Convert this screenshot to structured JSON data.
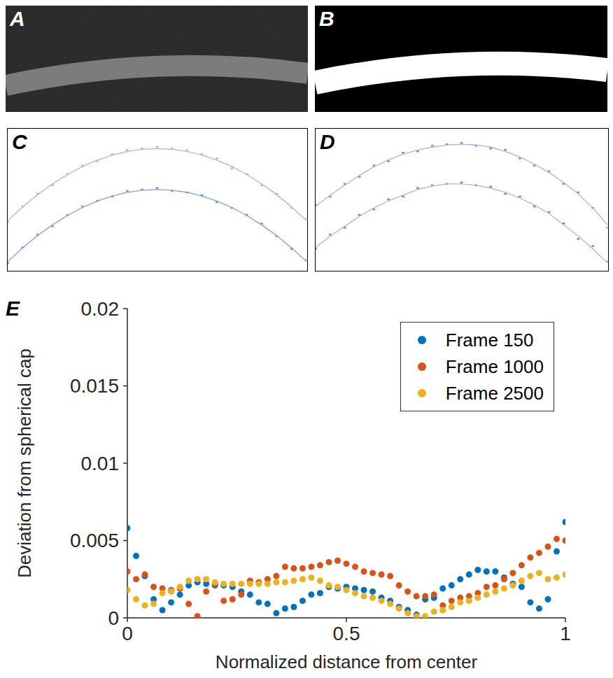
{
  "chart_data": [
    {
      "panel": "A",
      "type": "image"
    },
    {
      "panel": "B",
      "type": "image"
    },
    {
      "panel": "C",
      "type": "scatter",
      "tick_labels": false,
      "xlim": [
        0,
        1
      ],
      "ylim": [
        0,
        1
      ],
      "x": [
        0,
        0.05,
        0.1,
        0.15,
        0.2,
        0.25,
        0.3,
        0.35,
        0.4,
        0.45,
        0.5,
        0.55,
        0.6,
        0.65,
        0.7,
        0.75,
        0.8,
        0.85,
        0.9,
        0.95,
        1
      ],
      "series": [
        {
          "type": "scatter",
          "color": "#f4a86f",
          "values": [
            0.34,
            0.45,
            0.54,
            0.6,
            0.68,
            0.74,
            0.77,
            0.82,
            0.85,
            0.86,
            0.87,
            0.86,
            0.85,
            0.82,
            0.79,
            0.72,
            0.68,
            0.6,
            0.54,
            0.44,
            0.36
          ]
        },
        {
          "type": "line",
          "color": "#c8a9d8",
          "values": [
            0.35,
            0.447,
            0.534,
            0.61,
            0.676,
            0.733,
            0.778,
            0.814,
            0.84,
            0.855,
            0.86,
            0.855,
            0.84,
            0.814,
            0.778,
            0.733,
            0.676,
            0.61,
            0.534,
            0.447,
            0.35
          ]
        },
        {
          "type": "scatter",
          "color": "#6f93d6",
          "values": [
            0.05,
            0.16,
            0.25,
            0.31,
            0.39,
            0.45,
            0.49,
            0.52,
            0.56,
            0.57,
            0.58,
            0.56,
            0.55,
            0.53,
            0.48,
            0.44,
            0.39,
            0.33,
            0.24,
            0.15,
            0.07
          ]
        },
        {
          "type": "line",
          "color": "#7f9fe0",
          "values": [
            0.06,
            0.157,
            0.244,
            0.32,
            0.386,
            0.443,
            0.488,
            0.524,
            0.55,
            0.565,
            0.57,
            0.565,
            0.55,
            0.524,
            0.488,
            0.443,
            0.386,
            0.32,
            0.244,
            0.157,
            0.06
          ]
        }
      ]
    },
    {
      "panel": "D",
      "type": "scatter",
      "tick_labels": false,
      "xlim": [
        0,
        1
      ],
      "ylim": [
        0,
        1
      ],
      "x": [
        0,
        0.05,
        0.1,
        0.15,
        0.2,
        0.25,
        0.3,
        0.35,
        0.4,
        0.45,
        0.5,
        0.55,
        0.6,
        0.65,
        0.7,
        0.75,
        0.8,
        0.85,
        0.9,
        0.95,
        1
      ],
      "series": [
        {
          "type": "scatter",
          "color": "#4c9fc0",
          "values": [
            0.46,
            0.52,
            0.61,
            0.66,
            0.74,
            0.77,
            0.83,
            0.84,
            0.88,
            0.89,
            0.9,
            0.88,
            0.86,
            0.85,
            0.79,
            0.74,
            0.7,
            0.61,
            0.55,
            0.44,
            0.3
          ]
        },
        {
          "type": "line",
          "color": "#a9b4e0",
          "values": [
            0.45,
            0.53,
            0.6,
            0.67,
            0.73,
            0.78,
            0.82,
            0.85,
            0.87,
            0.885,
            0.89,
            0.885,
            0.87,
            0.84,
            0.8,
            0.75,
            0.69,
            0.62,
            0.54,
            0.44,
            0.32
          ]
        },
        {
          "type": "scatter",
          "color": "#e0623e",
          "values": [
            0.15,
            0.25,
            0.3,
            0.39,
            0.43,
            0.5,
            0.52,
            0.58,
            0.6,
            0.61,
            0.62,
            0.6,
            0.59,
            0.54,
            0.52,
            0.45,
            0.41,
            0.33,
            0.22,
            0.17,
            0.06
          ]
        },
        {
          "type": "line",
          "color": "#b9b0d8",
          "values": [
            0.16,
            0.24,
            0.31,
            0.38,
            0.44,
            0.49,
            0.53,
            0.57,
            0.595,
            0.61,
            0.61,
            0.6,
            0.58,
            0.55,
            0.51,
            0.46,
            0.4,
            0.32,
            0.24,
            0.15,
            0.05
          ]
        }
      ]
    },
    {
      "panel": "E",
      "type": "scatter",
      "x_label": "Normalized distance from center",
      "y_label": "Deviation from spherical cap",
      "xlim": [
        0,
        1
      ],
      "ylim": [
        0,
        0.02
      ],
      "xticks": [
        0,
        0.5,
        1
      ],
      "yticks": [
        0,
        0.005,
        0.01,
        0.015,
        0.02
      ],
      "legend": "upper right",
      "x": [
        0,
        0.02,
        0.04,
        0.06,
        0.08,
        0.1,
        0.12,
        0.14,
        0.16,
        0.18,
        0.2,
        0.22,
        0.24,
        0.26,
        0.28,
        0.3,
        0.32,
        0.34,
        0.36,
        0.38,
        0.4,
        0.42,
        0.44,
        0.46,
        0.48,
        0.5,
        0.52,
        0.54,
        0.56,
        0.58,
        0.6,
        0.62,
        0.64,
        0.66,
        0.68,
        0.7,
        0.72,
        0.74,
        0.76,
        0.78,
        0.8,
        0.82,
        0.84,
        0.86,
        0.88,
        0.9,
        0.92,
        0.94,
        0.96,
        0.98,
        1
      ],
      "series": [
        {
          "name": "Frame 150",
          "color": "#0072bd",
          "values": [
            0.0058,
            0.004,
            0.0027,
            0.0012,
            0.0005,
            0.001,
            0.0015,
            0.0021,
            0.0023,
            0.0022,
            0.0021,
            0.0021,
            0.002,
            0.0017,
            0.0015,
            0.001,
            0.0009,
            0.0003,
            0.0006,
            0.0007,
            0.0011,
            0.0015,
            0.0016,
            0.002,
            0.0019,
            0.002,
            0.0019,
            0.0018,
            0.0017,
            0.0013,
            0.0011,
            0.0007,
            0.0005,
            0.0002,
            0.0012,
            0.0013,
            0.0019,
            0.0021,
            0.0025,
            0.0028,
            0.0031,
            0.003,
            0.003,
            0.0026,
            0.0022,
            0.002,
            0.001,
            0.0006,
            0.0012,
            0.0043,
            0.0062
          ]
        },
        {
          "name": "Frame 1000",
          "color": "#d95319",
          "values": [
            0.003,
            0.0025,
            0.0028,
            0.002,
            0.0019,
            0.0018,
            0.0019,
            0.0009,
            0.0001,
            0.0017,
            0.0022,
            0.0011,
            0.0012,
            0.0015,
            0.0024,
            0.0023,
            0.0025,
            0.0027,
            0.0033,
            0.0032,
            0.0032,
            0.0033,
            0.0034,
            0.0036,
            0.0037,
            0.0035,
            0.0033,
            0.003,
            0.0029,
            0.0028,
            0.0027,
            0.0021,
            0.0017,
            0.0014,
            0.0014,
            0.0015,
            0.0008,
            0.0011,
            0.0013,
            0.0014,
            0.0016,
            0.002,
            0.0021,
            0.0025,
            0.0029,
            0.0034,
            0.0039,
            0.0042,
            0.0046,
            0.0051,
            0.005
          ]
        },
        {
          "name": "Frame 2500",
          "color": "#edb120",
          "values": [
            0.0018,
            0.0012,
            0.0008,
            0.0009,
            0.0016,
            0.0017,
            0.002,
            0.0024,
            0.0025,
            0.0025,
            0.0023,
            0.0022,
            0.0022,
            0.0022,
            0.0022,
            0.0022,
            0.0022,
            0.0023,
            0.0023,
            0.0024,
            0.0025,
            0.0026,
            0.0024,
            0.0021,
            0.002,
            0.0018,
            0.0016,
            0.0014,
            0.0013,
            0.0011,
            0.0009,
            0.0006,
            0.0003,
            0.0001,
            0.0001,
            0.0004,
            0.0005,
            0.0007,
            0.001,
            0.0011,
            0.0013,
            0.0015,
            0.0017,
            0.0019,
            0.0021,
            0.0024,
            0.0027,
            0.0029,
            0.0025,
            0.0026,
            0.0028
          ]
        }
      ]
    }
  ]
}
